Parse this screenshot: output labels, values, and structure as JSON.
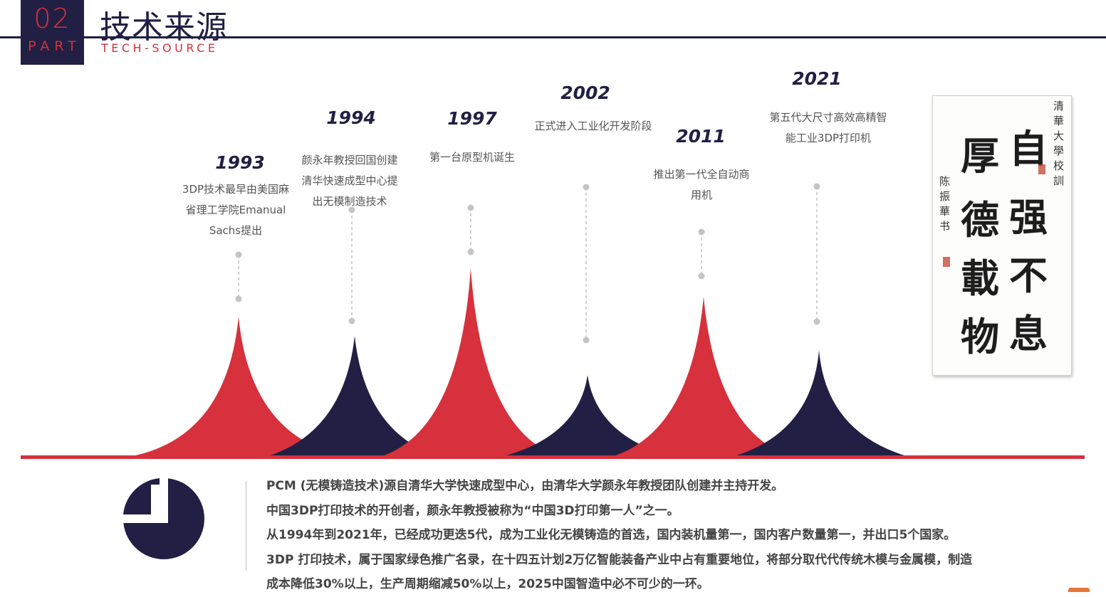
{
  "header": {
    "part_number": "02",
    "part_label": "PART",
    "title": "技术来源",
    "subtitle": "TECH-SOURCE"
  },
  "colors": {
    "navy": "#211f44",
    "red": "#d6313c",
    "dot_gray": "#c4c4c4"
  },
  "timeline": [
    {
      "year": "1993",
      "lines": [
        "3DP技术最早由美国麻",
        "省理工学院Emanual",
        "Sachs提出"
      ],
      "color": "red"
    },
    {
      "year": "1994",
      "lines": [
        "颜永年教授回国创建",
        "清华快速成型中心提",
        "出无模制造技术"
      ],
      "color": "navy"
    },
    {
      "year": "1997",
      "lines": [
        "第一台原型机诞生"
      ],
      "color": "red"
    },
    {
      "year": "2002",
      "lines": [
        "正式进入工业化开发阶段"
      ],
      "color": "navy"
    },
    {
      "year": "2011",
      "lines": [
        "推出第一代全自动商",
        "用机"
      ],
      "color": "red"
    },
    {
      "year": "2021",
      "lines": [
        "第五代大尺寸高效高精智",
        "能工业3DP打印机"
      ],
      "color": "navy"
    }
  ],
  "calligraphy": {
    "right_column": [
      "自",
      "强",
      "不",
      "息"
    ],
    "left_column": [
      "厚",
      "德",
      "載",
      "物"
    ],
    "inscription_school": "清華大學校訓",
    "inscription_author": "陈振華书"
  },
  "pie_icon": "pie-chart-icon",
  "body": [
    "PCM (无模铸造技术)源自清华大学快速成型中心，由清华大学颜永年教授团队创建并主持开发。",
    "中国3DP打印技术的开创者，颜永年教授被称为“中国3D打印第一人”之一。",
    "从1994年到2021年，已经成功更迭5代，成为工业化无模铸造的首选，国内装机量第一，国内客户数量第一，并出口5个国家。",
    "3DP 打印技术，属于国家绿色推广名录，在十四五计划2万亿智能装备产业中占有重要地位，将部分取代代传统木模与金属模，制造",
    "成本降低30%以上，生产周期缩减50%以上，2025中国智造中必不可少的一环。"
  ]
}
